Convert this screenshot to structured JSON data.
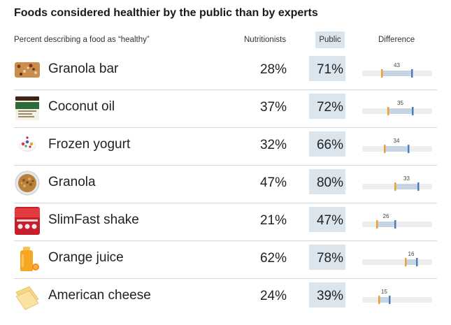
{
  "title": "Foods considered healthier by the public than by experts",
  "headers": {
    "label": "Percent describing a food as “healthy”",
    "nutritionists": "Nutritionists",
    "public": "Public",
    "difference": "Difference"
  },
  "colors": {
    "nutritionists_marker": "#f0a030",
    "public_marker": "#4a7fb5",
    "track": "#eeeeee",
    "gap_fill": "#c6d5e3",
    "public_highlight": "#dbe5ee"
  },
  "rows": [
    {
      "food": "Granola bar",
      "icon": "granola-bar-icon",
      "nutritionists_text": "28%",
      "public_text": "71%",
      "difference_text": "43"
    },
    {
      "food": "Coconut oil",
      "icon": "coconut-oil-jar-icon",
      "nutritionists_text": "37%",
      "public_text": "72%",
      "difference_text": "35"
    },
    {
      "food": "Frozen yogurt",
      "icon": "frozen-yogurt-icon",
      "nutritionists_text": "32%",
      "public_text": "66%",
      "difference_text": "34"
    },
    {
      "food": "Granola",
      "icon": "granola-bowl-icon",
      "nutritionists_text": "47%",
      "public_text": "80%",
      "difference_text": "33"
    },
    {
      "food": "SlimFast shake",
      "icon": "slimfast-can-icon",
      "nutritionists_text": "21%",
      "public_text": "47%",
      "difference_text": "26"
    },
    {
      "food": "Orange juice",
      "icon": "orange-juice-icon",
      "nutritionists_text": "62%",
      "public_text": "78%",
      "difference_text": "16"
    },
    {
      "food": "American cheese",
      "icon": "cheese-slices-icon",
      "nutritionists_text": "24%",
      "public_text": "39%",
      "difference_text": "15"
    }
  ],
  "chart_data": {
    "type": "table",
    "title": "Foods considered healthier by the public than by experts",
    "columns": [
      "Percent describing a food as “healthy”",
      "Nutritionists",
      "Public",
      "Difference"
    ],
    "categories": [
      "Granola bar",
      "Coconut oil",
      "Frozen yogurt",
      "Granola",
      "SlimFast shake",
      "Orange juice",
      "American cheese"
    ],
    "series": [
      {
        "name": "Nutritionists",
        "values": [
          28,
          37,
          32,
          47,
          21,
          62,
          24
        ]
      },
      {
        "name": "Public",
        "values": [
          71,
          72,
          66,
          80,
          47,
          78,
          39
        ]
      },
      {
        "name": "Difference",
        "values": [
          43,
          35,
          34,
          33,
          26,
          16,
          15
        ]
      }
    ],
    "difference_scale": [
      0,
      100
    ]
  }
}
